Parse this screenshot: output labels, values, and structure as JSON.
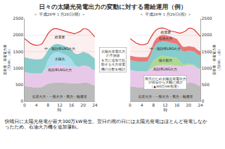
{
  "title": "日々の太陽光発電出力の変動に対する需給運用（例）",
  "annotations": [
    "太陽光発電出力\nの予測値\nを元に追加で起\n動する火力発電\n機の台数を検討",
    "快晴日に太陽光発電が最大300万kW発生。翌日の雨の日には太陽光発電はほとんど発電しなかったため、石油火力機を追加運転。"
  ],
  "chart_data": [
    {
      "type": "area",
      "title": "＜ 平成28年１月28日(晴) ＞",
      "xlabel": "時",
      "ylabel": "需要量・発電電力量\n（万kW）（例）",
      "stacked": false,
      "x": [
        0,
        1,
        2,
        3,
        4,
        5,
        6,
        7,
        8,
        9,
        10,
        11,
        12,
        13,
        14,
        15,
        16,
        17,
        18,
        19,
        20,
        21,
        22,
        23,
        24
      ],
      "xlim": [
        0,
        24
      ],
      "ylim": [
        0,
        2500
      ],
      "xticks": [
        0,
        4,
        8,
        12,
        16,
        20,
        24
      ],
      "yticks": [
        0,
        500,
        1000,
        1500,
        2000,
        2500
      ],
      "series": [
        {
          "name": "石炭火力・一般水力・風力・融通等",
          "color": "#bbbbbb",
          "values": [
            460,
            445,
            435,
            425,
            420,
            418,
            428,
            490,
            530,
            548,
            558,
            565,
            562,
            558,
            554,
            550,
            546,
            538,
            538,
            548,
            565,
            563,
            545,
            500,
            470
          ]
        },
        {
          "name": "高効率LNG火力",
          "color": "#e8c8e8",
          "values": [
            880,
            858,
            848,
            838,
            832,
            835,
            850,
            938,
            1010,
            1055,
            1075,
            1085,
            1082,
            1072,
            1062,
            1052,
            1048,
            1032,
            1042,
            1055,
            1082,
            1070,
            1042,
            968,
            920
          ]
        },
        {
          "name": "太陽光",
          "color": "#aaddee",
          "values": [
            880,
            858,
            848,
            838,
            832,
            835,
            852,
            1010,
            1250,
            1390,
            1460,
            1480,
            1470,
            1440,
            1400,
            1350,
            1260,
            1110,
            1042,
            1055,
            1082,
            1070,
            1042,
            968,
            920
          ]
        },
        {
          "name": "中・低効率LNG火力",
          "color": "#88cccc",
          "values": [
            1330,
            1300,
            1282,
            1272,
            1262,
            1268,
            1282,
            1390,
            1550,
            1650,
            1710,
            1730,
            1720,
            1690,
            1660,
            1620,
            1548,
            1448,
            1422,
            1448,
            1492,
            1468,
            1430,
            1348,
            1290
          ]
        },
        {
          "name": "総需要",
          "color": "#dd3333",
          "values": [
            1890,
            1810,
            1748,
            1708,
            1688,
            1700,
            1740,
            1892,
            2042,
            2142,
            2192,
            2192,
            2170,
            2140,
            2110,
            2088,
            2070,
            2040,
            2070,
            2110,
            2190,
            2190,
            2140,
            2040,
            1938
          ]
        }
      ]
    },
    {
      "type": "area",
      "title": "＜ 平成28年１月29日(雨) ＞",
      "xlabel": "時",
      "ylabel": "需要量・発電電力量\n（万kW）（例）",
      "stacked": false,
      "x": [
        0,
        1,
        2,
        3,
        4,
        5,
        6,
        7,
        8,
        9,
        10,
        11,
        12,
        13,
        14,
        15,
        16,
        17,
        18,
        19,
        20,
        21,
        22,
        23,
        24
      ],
      "xlim": [
        0,
        24
      ],
      "ylim": [
        0,
        2500
      ],
      "xticks": [
        0,
        4,
        8,
        12,
        16,
        20,
        24
      ],
      "yticks": [
        0,
        500,
        1000,
        1500,
        2000,
        2500
      ],
      "annotations": [
        "雨天のため太陽光発電出力\nが前日から大幅に減少\n（▲300万kW程度）"
      ],
      "series": [
        {
          "name": "石炭火力・一般水力・風力・融通等",
          "color": "#bbbbbb",
          "values": [
            455,
            440,
            428,
            420,
            415,
            412,
            420,
            480,
            518,
            536,
            548,
            558,
            558,
            550,
            545,
            540,
            537,
            528,
            530,
            540,
            558,
            560,
            540,
            492,
            462
          ]
        },
        {
          "name": "高効率LNG火力",
          "color": "#e8c8e8",
          "values": [
            945,
            922,
            910,
            905,
            900,
            897,
            910,
            975,
            1035,
            1070,
            1090,
            1100,
            1100,
            1090,
            1080,
            1070,
            1065,
            1050,
            1055,
            1070,
            1095,
            1090,
            1060,
            986,
            956
          ]
        },
        {
          "name": "揚水勤力",
          "color": "#b0d890",
          "values": [
            945,
            922,
            910,
            905,
            900,
            897,
            910,
            1068,
            1230,
            1298,
            1355,
            1375,
            1370,
            1355,
            1338,
            1320,
            1302,
            1208,
            1108,
            1108,
            1138,
            1118,
            1090,
            1016,
            980
          ]
        },
        {
          "name": "中・低効率LNG火力",
          "color": "#88cccc",
          "values": [
            1240,
            1220,
            1205,
            1200,
            1195,
            1192,
            1205,
            1375,
            1610,
            1730,
            1790,
            1810,
            1805,
            1785,
            1768,
            1752,
            1728,
            1608,
            1505,
            1505,
            1525,
            1515,
            1495,
            1415,
            1375
          ]
        },
        {
          "name": "石油火力",
          "color": "#e87878",
          "values": [
            1375,
            1355,
            1340,
            1335,
            1330,
            1327,
            1340,
            1510,
            1768,
            1905,
            1968,
            2000,
            1995,
            1978,
            1952,
            1918,
            1878,
            1758,
            1645,
            1645,
            1665,
            1650,
            1630,
            1550,
            1505
          ]
        },
        {
          "name": "総需要",
          "color": "#dd3333",
          "values": [
            1892,
            1822,
            1762,
            1722,
            1700,
            1712,
            1752,
            1915,
            2058,
            2158,
            2205,
            2215,
            2195,
            2155,
            2118,
            2102,
            2082,
            2052,
            2082,
            2122,
            2205,
            2205,
            2154,
            2048,
            1955
          ]
        }
      ]
    }
  ]
}
